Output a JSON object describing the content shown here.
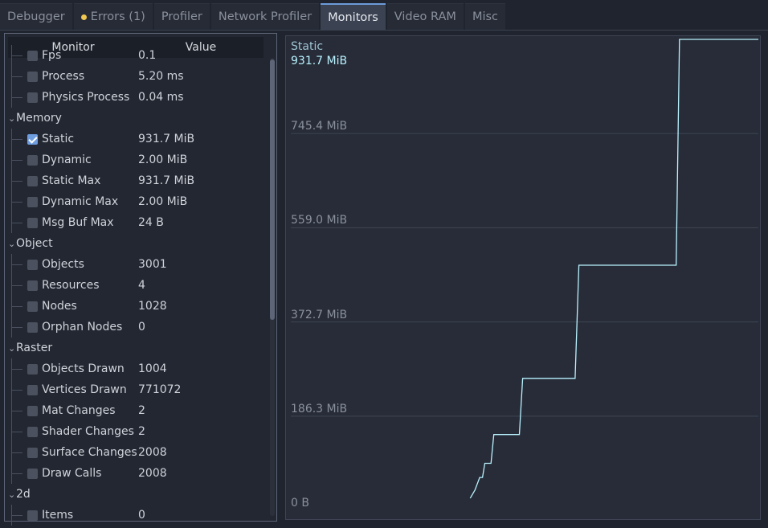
{
  "tabs": [
    {
      "label": "Debugger",
      "active": false
    },
    {
      "label": "Errors (1)",
      "active": false,
      "indicator_color": "#f0c74f"
    },
    {
      "label": "Profiler",
      "active": false
    },
    {
      "label": "Network Profiler",
      "active": false
    },
    {
      "label": "Monitors",
      "active": true
    },
    {
      "label": "Video RAM",
      "active": false
    },
    {
      "label": "Misc",
      "active": false
    }
  ],
  "tree": {
    "header": {
      "monitor": "Monitor",
      "value": "Value"
    },
    "partial_top": {
      "label": "Fps",
      "value": "0.1"
    },
    "rows": [
      {
        "type": "item",
        "label": "Process",
        "value": "5.20 ms",
        "checked": false
      },
      {
        "type": "item",
        "label": "Physics Process",
        "value": "0.04 ms",
        "checked": false
      },
      {
        "type": "cat",
        "label": "Memory"
      },
      {
        "type": "item",
        "label": "Static",
        "value": "931.7 MiB",
        "checked": true
      },
      {
        "type": "item",
        "label": "Dynamic",
        "value": "2.00 MiB",
        "checked": false
      },
      {
        "type": "item",
        "label": "Static Max",
        "value": "931.7 MiB",
        "checked": false
      },
      {
        "type": "item",
        "label": "Dynamic Max",
        "value": "2.00 MiB",
        "checked": false
      },
      {
        "type": "item",
        "label": "Msg Buf Max",
        "value": "24 B",
        "checked": false
      },
      {
        "type": "cat",
        "label": "Object"
      },
      {
        "type": "item",
        "label": "Objects",
        "value": "3001",
        "checked": false
      },
      {
        "type": "item",
        "label": "Resources",
        "value": "4",
        "checked": false
      },
      {
        "type": "item",
        "label": "Nodes",
        "value": "1028",
        "checked": false
      },
      {
        "type": "item",
        "label": "Orphan Nodes",
        "value": "0",
        "checked": false
      },
      {
        "type": "cat",
        "label": "Raster"
      },
      {
        "type": "item",
        "label": "Objects Drawn",
        "value": "1004",
        "checked": false
      },
      {
        "type": "item",
        "label": "Vertices Drawn",
        "value": "771072",
        "checked": false
      },
      {
        "type": "item",
        "label": "Mat Changes",
        "value": "2",
        "checked": false
      },
      {
        "type": "item",
        "label": "Shader Changes",
        "value": "2",
        "checked": false
      },
      {
        "type": "item",
        "label": "Surface Changes",
        "value": "2008",
        "checked": false
      },
      {
        "type": "item",
        "label": "Draw Calls",
        "value": "2008",
        "checked": false
      },
      {
        "type": "cat",
        "label": "2d"
      },
      {
        "type": "item",
        "label": "Items",
        "value": "0",
        "checked": false
      }
    ]
  },
  "graph": {
    "series_name": "Static",
    "series_value": "931.7 MiB",
    "line_color": "#b9f2ff",
    "grid_color": "#3f4555"
  },
  "chart_data": {
    "type": "line",
    "title": "Static",
    "current_value": "931.7 MiB",
    "y_tick_labels": [
      "0 B",
      "186.3 MiB",
      "372.7 MiB",
      "559.0 MiB",
      "745.4 MiB"
    ],
    "y_ticks": [
      0,
      186.3,
      372.7,
      559.0,
      745.4
    ],
    "ylim": [
      0,
      931.7
    ],
    "xlim": [
      0,
      100
    ],
    "series": [
      {
        "values": [
          [
            39.0,
            24
          ],
          [
            40.0,
            40
          ],
          [
            41.0,
            65
          ],
          [
            41.6,
            65
          ],
          [
            42.1,
            93
          ],
          [
            43.4,
            93
          ],
          [
            44.0,
            150
          ],
          [
            49.4,
            150
          ],
          [
            50.1,
            261
          ],
          [
            61.2,
            261
          ],
          [
            62.0,
            485
          ],
          [
            82.6,
            485
          ],
          [
            83.3,
            931.7
          ],
          [
            100,
            931.7
          ]
        ]
      }
    ],
    "grid": true
  }
}
